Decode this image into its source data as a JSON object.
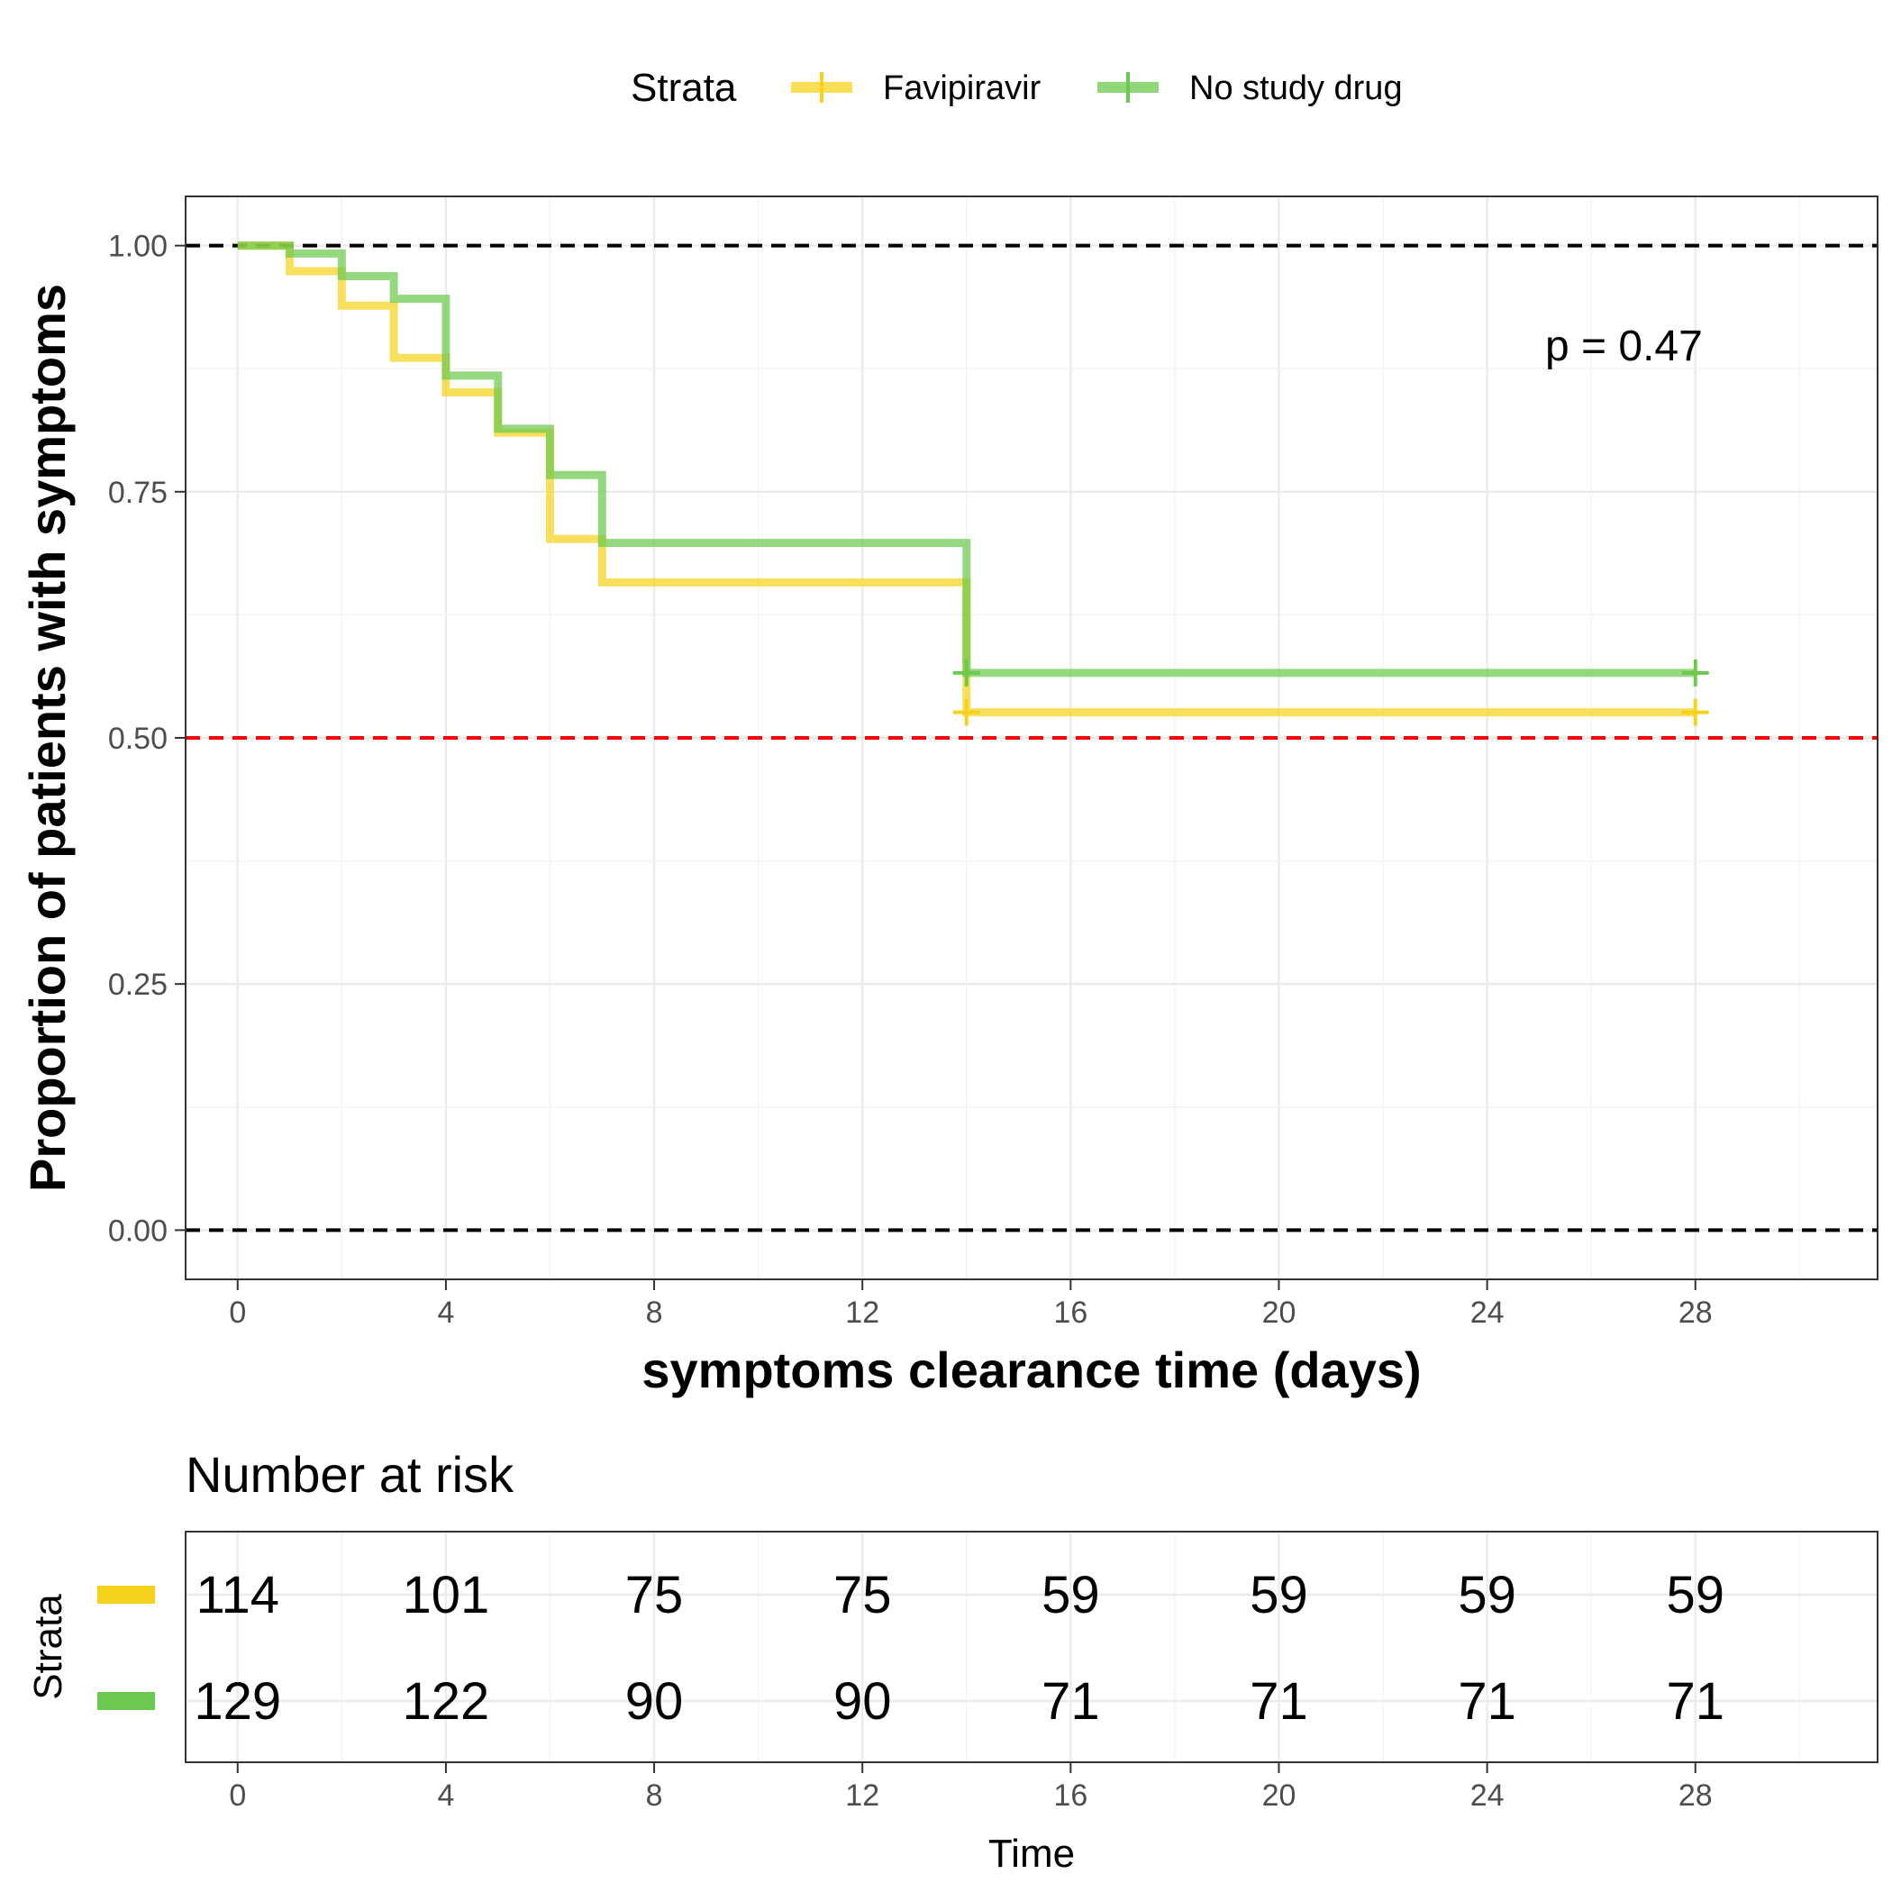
{
  "legend": {
    "title": "Strata",
    "entries": [
      "Favipiravir",
      "No study drug"
    ]
  },
  "colors": {
    "favipiravir": "#F5D21E",
    "no_study_drug": "#6CC94E",
    "median_line": "#FF0000",
    "reference_line": "#000000"
  },
  "chart_data": {
    "type": "line",
    "subtype": "kaplan-meier step",
    "xlabel": "symptoms clearance time (days)",
    "ylabel": "Proportion of patients with symptoms",
    "xlim": [
      -1,
      31.5
    ],
    "ylim": [
      -0.05,
      1.05
    ],
    "xticks": [
      0,
      4,
      8,
      12,
      16,
      20,
      24,
      28
    ],
    "yticks": [
      0,
      0.25,
      0.5,
      0.75,
      1.0
    ],
    "ytick_labels": [
      "0.00",
      "0.25",
      "0.50",
      "0.75",
      "1.00"
    ],
    "grid": true,
    "legend_position": "top",
    "annotation": "p = 0.47",
    "hlines": [
      {
        "y": 1.0,
        "style": "dashed",
        "color": "#000000"
      },
      {
        "y": 0.5,
        "style": "dashed",
        "color": "#FF0000"
      },
      {
        "y": 0.0,
        "style": "dashed",
        "color": "#000000"
      }
    ],
    "series": [
      {
        "name": "Favipiravir",
        "color": "#F5D21E",
        "x": [
          0,
          1,
          2,
          3,
          4,
          5,
          6,
          7,
          14,
          28
        ],
        "y": [
          1.0,
          0.974,
          0.939,
          0.886,
          0.851,
          0.81,
          0.702,
          0.658,
          0.526,
          0.526
        ],
        "censored": [
          [
            14,
            0.526
          ],
          [
            28,
            0.526
          ]
        ]
      },
      {
        "name": "No study drug",
        "color": "#6CC94E",
        "x": [
          0,
          1,
          2,
          3,
          4,
          5,
          6,
          7,
          14,
          28
        ],
        "y": [
          1.0,
          0.992,
          0.969,
          0.946,
          0.868,
          0.814,
          0.767,
          0.698,
          0.566,
          0.566
        ],
        "censored": [
          [
            14,
            0.566
          ],
          [
            28,
            0.566
          ]
        ]
      }
    ],
    "risk_table": {
      "title": "Number at risk",
      "ylabel": "Strata",
      "xlabel": "Time",
      "times": [
        0,
        4,
        8,
        12,
        16,
        20,
        24,
        28
      ],
      "rows": [
        {
          "name": "Favipiravir",
          "values": [
            114,
            101,
            75,
            75,
            59,
            59,
            59,
            59
          ]
        },
        {
          "name": "No study drug",
          "values": [
            129,
            122,
            90,
            90,
            71,
            71,
            71,
            71
          ]
        }
      ]
    }
  }
}
